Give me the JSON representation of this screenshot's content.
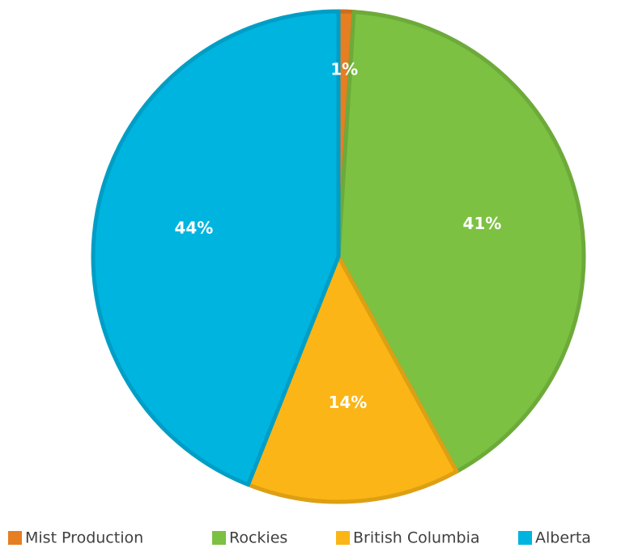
{
  "chart_data": {
    "type": "pie",
    "categories": [
      "Mist Production",
      "Rockies",
      "British Columbia",
      "Alberta"
    ],
    "values": [
      1,
      41,
      14,
      44
    ],
    "value_labels": [
      "1%",
      "41%",
      "14%",
      "44%"
    ],
    "colors": [
      "#e67e22",
      "#7cc142",
      "#fbb516",
      "#00b4e0"
    ],
    "legend": "bottom"
  }
}
